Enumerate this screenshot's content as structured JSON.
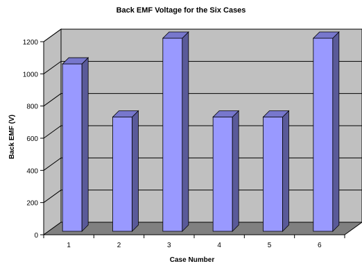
{
  "chart_data": {
    "type": "bar",
    "title": "Back EMF Voltage for the Six Cases",
    "xlabel": "Case Number",
    "ylabel": "Back EMF (V)",
    "categories": [
      "1",
      "2",
      "3",
      "4",
      "5",
      "6"
    ],
    "values": [
      1040,
      710,
      1200,
      710,
      710,
      1200
    ],
    "ylim": [
      0,
      1200
    ],
    "yticks": [
      "0",
      "200",
      "400",
      "600",
      "800",
      "1000",
      "1200"
    ],
    "grid": true,
    "legend": "none",
    "style": "3d-column",
    "colors": {
      "bar_front": "#9999ff",
      "bar_side": "#5a5a99",
      "bar_top": "#7777cc",
      "wall": "#c0c0c0",
      "floor": "#808080",
      "gridline": "#000000"
    }
  }
}
